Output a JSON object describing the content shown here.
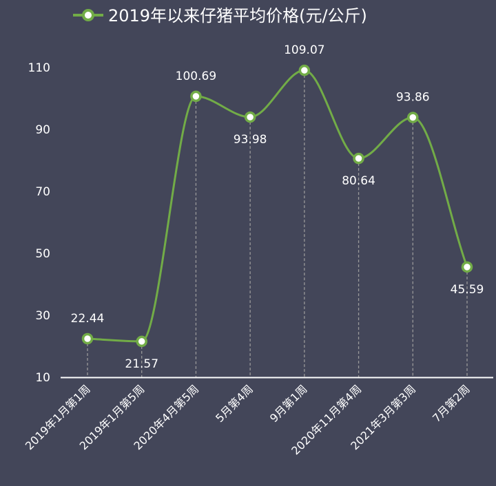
{
  "chart_data": {
    "type": "line",
    "legend": "2019年以来仔猪平均价格(元/公斤)",
    "categories": [
      "2019年1月第1周",
      "2019年1月第5周",
      "2020年4月第5周",
      "5月第4周",
      "9月第1周",
      "2020年11月第4周",
      "2021年3月第3周",
      "7月第2周"
    ],
    "series": [
      {
        "name": "2019年以来仔猪平均价格(元/公斤)",
        "values": [
          22.44,
          21.57,
          100.69,
          93.98,
          109.07,
          80.64,
          93.86,
          45.59
        ],
        "labels": [
          "22.44",
          "21.57",
          "100.69",
          "93.98",
          "109.07",
          "80.64",
          "93.86",
          "45.59"
        ],
        "label_positions": [
          "above",
          "below",
          "above",
          "below",
          "above",
          "below",
          "above",
          "below"
        ]
      }
    ],
    "y_ticks": [
      "10",
      "30",
      "50",
      "70",
      "90",
      "110"
    ],
    "ylim": [
      10,
      110
    ],
    "smooth": true,
    "grid": false,
    "drop_lines": true,
    "legend_position": "top",
    "colors": {
      "background": "#434659",
      "line": "#72ac47",
      "marker_fill": "#ffffff",
      "drop_line": "#9a9a9a",
      "axis": "#ffffff",
      "text": "#ffffff"
    }
  }
}
